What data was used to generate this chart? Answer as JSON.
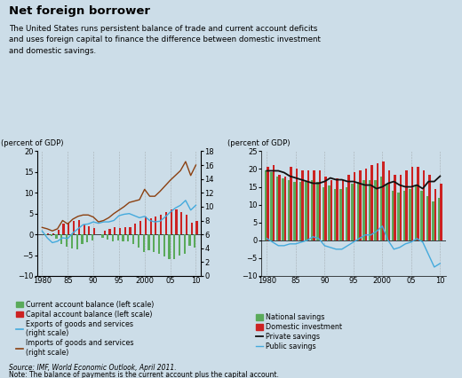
{
  "title": "Net foreign borrower",
  "subtitle": "The United States runs persistent balance of trade and current account deficits\nand uses foreign capital to finance the difference between domestic investment\nand domestic savings.",
  "source": "Source: IMF, World Economic Outlook, April 2011.",
  "note": "Note: The balance of payments is the current account plus the capital account.",
  "bg_color": "#ccdde8",
  "years": [
    1980,
    1981,
    1982,
    1983,
    1984,
    1985,
    1986,
    1987,
    1988,
    1989,
    1990,
    1991,
    1992,
    1993,
    1994,
    1995,
    1996,
    1997,
    1998,
    1999,
    2000,
    2001,
    2002,
    2003,
    2004,
    2005,
    2006,
    2007,
    2008,
    2009,
    2010
  ],
  "left_chart": {
    "ylim_left": [
      -10,
      20
    ],
    "ylim_right": [
      0,
      18
    ],
    "yticks_left": [
      -10,
      -5,
      0,
      5,
      10,
      15,
      20
    ],
    "yticks_right": [
      0,
      2,
      4,
      6,
      8,
      10,
      12,
      14,
      16,
      18
    ],
    "current_account": [
      0.0,
      -0.2,
      -0.3,
      -1.0,
      -2.4,
      -2.9,
      -3.3,
      -3.5,
      -2.4,
      -1.8,
      -1.4,
      0.0,
      -0.8,
      -1.2,
      -1.7,
      -1.5,
      -1.6,
      -1.7,
      -2.4,
      -3.2,
      -4.2,
      -3.8,
      -4.3,
      -4.7,
      -5.3,
      -5.9,
      -6.0,
      -5.2,
      -4.7,
      -2.7,
      -3.2
    ],
    "capital_account": [
      0.0,
      0.2,
      0.3,
      1.0,
      2.5,
      2.9,
      3.3,
      3.4,
      2.4,
      1.9,
      1.5,
      0.0,
      0.8,
      1.2,
      1.7,
      1.6,
      1.7,
      1.8,
      2.5,
      3.2,
      4.2,
      3.9,
      4.3,
      4.7,
      5.3,
      5.9,
      6.0,
      5.3,
      4.7,
      2.8,
      3.2
    ],
    "exports": [
      6.5,
      5.5,
      4.8,
      5.0,
      5.5,
      5.4,
      6.2,
      6.8,
      7.4,
      7.5,
      7.8,
      7.6,
      7.8,
      7.8,
      8.0,
      8.7,
      8.9,
      9.0,
      8.7,
      8.4,
      8.6,
      8.0,
      7.8,
      7.9,
      8.5,
      9.2,
      9.8,
      10.2,
      10.9,
      9.5,
      10.2
    ],
    "imports": [
      7.0,
      6.8,
      6.5,
      6.8,
      8.0,
      7.5,
      8.2,
      8.6,
      8.8,
      8.8,
      8.5,
      7.8,
      8.0,
      8.4,
      9.0,
      9.5,
      10.0,
      10.6,
      10.8,
      11.0,
      12.5,
      11.5,
      11.5,
      12.2,
      13.0,
      13.8,
      14.5,
      15.2,
      16.5,
      14.5,
      16.0
    ]
  },
  "right_chart": {
    "ylim_left": [
      -10,
      25
    ],
    "yticks_left": [
      -10,
      -5,
      0,
      5,
      10,
      15,
      20,
      25
    ],
    "national_savings": [
      19.5,
      19.0,
      18.0,
      17.5,
      17.0,
      16.5,
      16.5,
      16.5,
      17.0,
      16.5,
      15.0,
      15.5,
      14.5,
      14.5,
      15.0,
      16.0,
      16.5,
      17.0,
      17.0,
      17.0,
      18.0,
      16.0,
      14.0,
      13.5,
      14.0,
      14.5,
      15.5,
      14.0,
      12.5,
      11.0,
      12.0
    ],
    "domestic_investment": [
      20.5,
      21.0,
      18.5,
      18.0,
      20.5,
      20.0,
      19.5,
      19.5,
      19.5,
      19.5,
      18.0,
      17.0,
      17.5,
      17.0,
      18.5,
      19.0,
      19.5,
      20.0,
      21.0,
      21.5,
      22.0,
      19.5,
      18.5,
      18.5,
      19.5,
      20.5,
      20.5,
      19.5,
      18.5,
      14.5,
      16.0
    ],
    "private_savings": [
      19.5,
      19.5,
      19.5,
      19.0,
      18.0,
      17.5,
      17.0,
      16.5,
      16.0,
      16.0,
      16.5,
      17.5,
      17.0,
      17.0,
      16.5,
      16.5,
      16.0,
      15.5,
      15.5,
      14.5,
      15.0,
      16.0,
      16.5,
      15.5,
      15.0,
      15.0,
      15.5,
      14.5,
      16.5,
      16.5,
      18.0
    ],
    "public_savings": [
      0.5,
      -0.5,
      -1.5,
      -1.5,
      -1.0,
      -1.0,
      -0.5,
      0.0,
      1.0,
      0.5,
      -1.5,
      -2.0,
      -2.5,
      -2.5,
      -1.5,
      -0.5,
      0.5,
      1.5,
      1.5,
      2.5,
      4.0,
      0.0,
      -2.5,
      -2.0,
      -1.0,
      -0.5,
      0.5,
      -0.5,
      -4.0,
      -7.5,
      -6.5
    ]
  },
  "colors": {
    "current_account": "#5aaa5a",
    "capital_account": "#cc2222",
    "exports": "#44aadd",
    "imports": "#8b4010",
    "national_savings": "#5aaa5a",
    "domestic_investment": "#cc2222",
    "private_savings": "#111111",
    "public_savings": "#44aadd"
  }
}
